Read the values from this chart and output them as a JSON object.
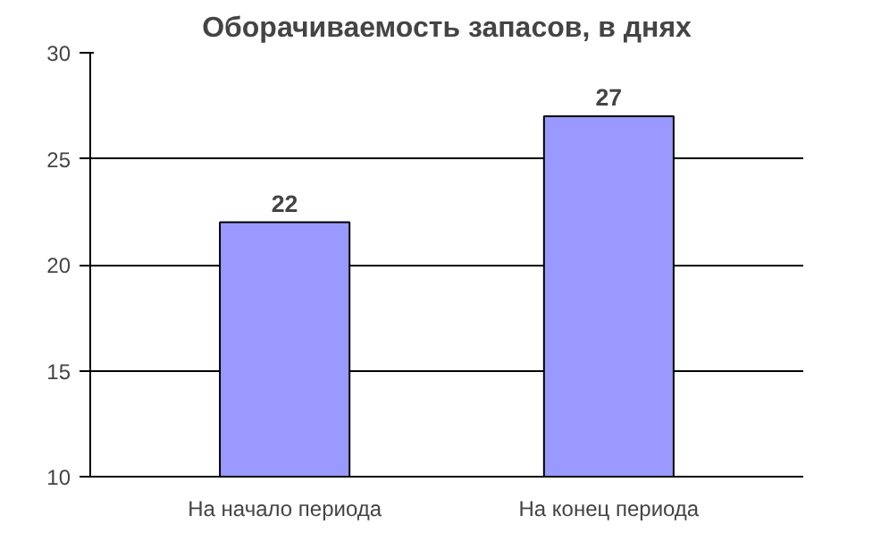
{
  "chart_data": {
    "type": "bar",
    "title": "Оборачиваемость запасов, в днях",
    "categories": [
      "На начало периода",
      "На конец периода"
    ],
    "values": [
      22,
      27
    ],
    "color": "#9999ff",
    "ylim": [
      10,
      30
    ],
    "yticks": [
      10,
      15,
      20,
      25,
      30
    ],
    "grid": "y",
    "data_labels": true
  }
}
